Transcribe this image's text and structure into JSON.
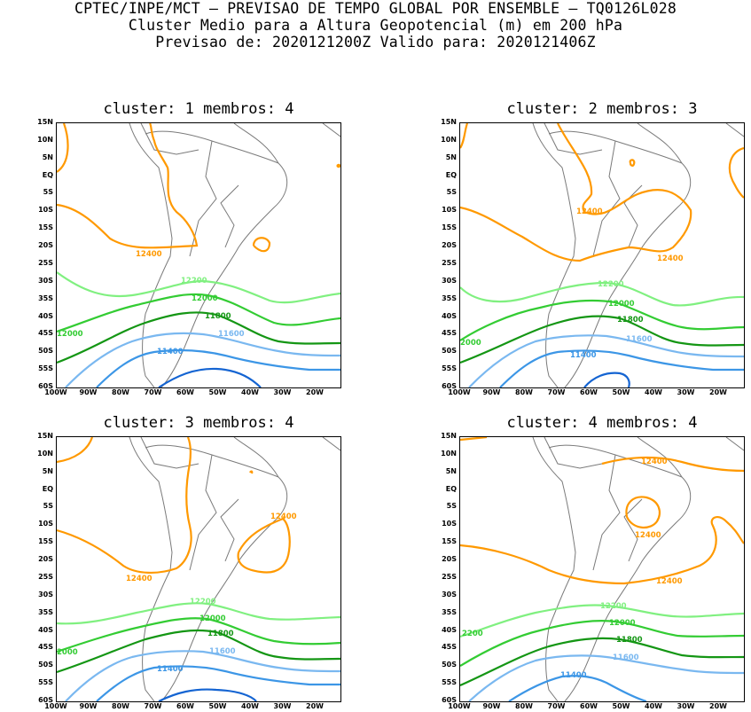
{
  "header": {
    "line1": "CPTEC/INPE/MCT — PREVISAO DE TEMPO GLOBAL POR ENSEMBLE — TQ0126L028",
    "line2": "Cluster Medio para a Altura Geopotencial (m) em 200 hPa",
    "line3": "Previsao de: 2020121200Z   Valido para: 2020121406Z"
  },
  "lat_labels": [
    "15N",
    "10N",
    "5N",
    "EQ",
    "5S",
    "10S",
    "15S",
    "20S",
    "25S",
    "30S",
    "35S",
    "40S",
    "45S",
    "50S",
    "55S",
    "60S"
  ],
  "lon_labels": [
    "100W",
    "90W",
    "80W",
    "70W",
    "60W",
    "50W",
    "40W",
    "30W",
    "20W"
  ],
  "colors": {
    "c12400": "#ff9900",
    "c12200": "#80f080",
    "c12000": "#33cc33",
    "c11800": "#149614",
    "c11600": "#7ab8f0",
    "c11400": "#3c96e6",
    "c11200": "#1464d2",
    "coast": "#7a7a7a"
  },
  "panels": [
    {
      "title": "cluster: 1  membros: 4",
      "labels": {
        "l12400": "12400",
        "l12200": "12200",
        "l12000a": "12000",
        "l12000b": "12000",
        "l11800": "11800",
        "l11600": "11600",
        "l11400": "11400"
      }
    },
    {
      "title": "cluster: 2  membros: 3",
      "labels": {
        "l12400a": "12400",
        "l12400b": "12400",
        "l12200": "12200",
        "l12000a": "12000",
        "l12000b": "2000",
        "l11800": "11800",
        "l11600": "11600",
        "l11400": "11400"
      }
    },
    {
      "title": "cluster: 3  membros: 4",
      "labels": {
        "l12400a": "12400",
        "l12400b": "12400",
        "l12200": "12200",
        "l12000a": "12000",
        "l12000b": "2000",
        "l11800": "11800",
        "l11600": "11600",
        "l11400": "11400"
      }
    },
    {
      "title": "cluster: 4  membros: 4",
      "labels": {
        "l12400a": "12400",
        "l12400b": "12400",
        "l12400c": "12400",
        "l12200": "12200",
        "l12000a": "12000",
        "l12000b": "2200",
        "l11800": "11800",
        "l11600": "11600",
        "l11400": "11400"
      }
    }
  ]
}
